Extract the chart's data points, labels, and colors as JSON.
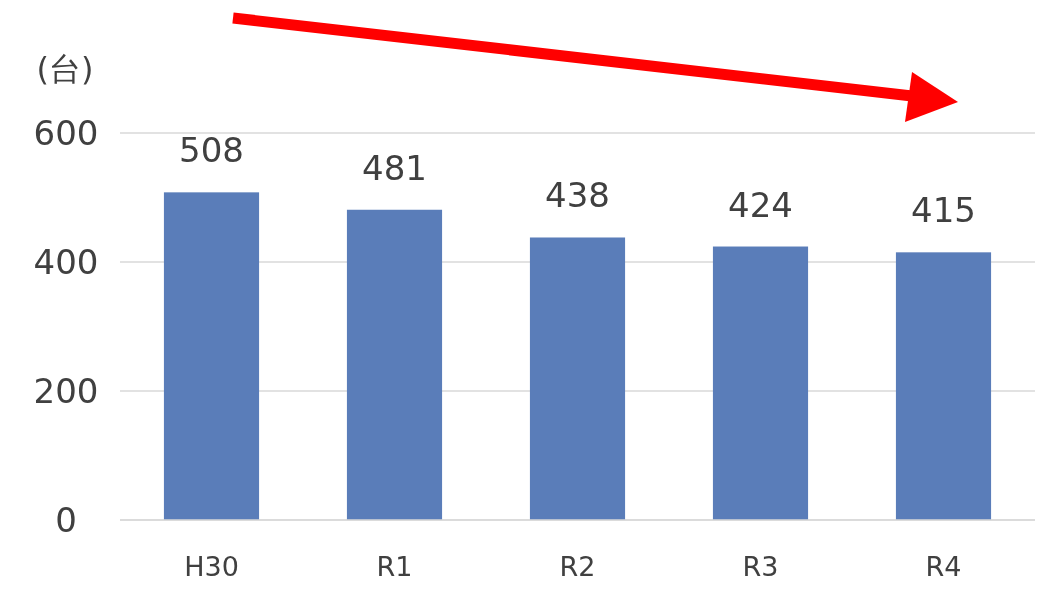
{
  "chart_data": {
    "type": "bar",
    "ylabel": "(台)",
    "categories": [
      "H30",
      "R1",
      "R2",
      "R3",
      "R4"
    ],
    "values": [
      508,
      481,
      438,
      424,
      415
    ],
    "color": "#5a7db9",
    "ylim": [
      0,
      600
    ],
    "yticks": [
      0,
      200,
      400,
      600
    ],
    "grid": "y",
    "data_labels": true
  }
}
